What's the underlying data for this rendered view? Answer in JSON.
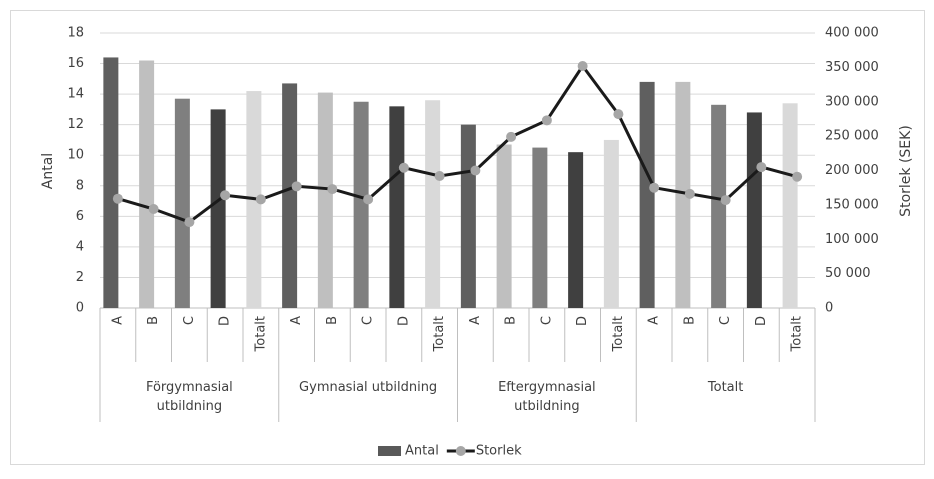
{
  "chart_data": {
    "type": "combo",
    "categories": [
      "A",
      "B",
      "C",
      "D",
      "Totalt",
      "A",
      "B",
      "C",
      "D",
      "Totalt",
      "A",
      "B",
      "C",
      "D",
      "Totalt",
      "A",
      "B",
      "C",
      "D",
      "Totalt"
    ],
    "groups": [
      "Förgymnasial utbildning",
      "Gymnasial utbildning",
      "Eftergymnasial utbildning",
      "Totalt"
    ],
    "series": [
      {
        "name": "Antal",
        "type": "bar",
        "color": "#595959",
        "colors": [
          "#5f5f5f",
          "#bfbfbf",
          "#7f7f7f",
          "#404040",
          "#d9d9d9",
          "#5f5f5f",
          "#bfbfbf",
          "#7f7f7f",
          "#404040",
          "#d9d9d9",
          "#5f5f5f",
          "#bfbfbf",
          "#7f7f7f",
          "#404040",
          "#d9d9d9",
          "#5f5f5f",
          "#bfbfbf",
          "#7f7f7f",
          "#404040",
          "#d9d9d9"
        ],
        "values": [
          16.4,
          16.2,
          13.7,
          13.0,
          14.2,
          14.7,
          14.1,
          13.5,
          13.2,
          13.6,
          12.0,
          10.7,
          10.5,
          10.2,
          11.0,
          14.8,
          14.8,
          13.3,
          12.8,
          13.4
        ]
      },
      {
        "name": "Storlek",
        "type": "line",
        "axis": "y2",
        "color": "#1a1a1a",
        "marker_color": "#a6a6a6",
        "values": [
          159000,
          144000,
          125000,
          164000,
          158000,
          177000,
          173000,
          158000,
          204000,
          192000,
          200000,
          249000,
          273000,
          352000,
          282000,
          175000,
          166000,
          157000,
          205000,
          191000
        ]
      }
    ],
    "ylabel": "Antal",
    "y2label": "Storlek (SEK)",
    "ylim": [
      0,
      18
    ],
    "yticks": [
      0,
      2,
      4,
      6,
      8,
      10,
      12,
      14,
      16,
      18
    ],
    "y2lim": [
      0,
      400000
    ],
    "y2ticks": [
      0,
      {
        "value": 50000,
        "label": "50 000"
      },
      {
        "value": 100000,
        "label": "100 000"
      },
      {
        "value": 150000,
        "label": "150 000"
      },
      {
        "value": 200000,
        "label": "200 000"
      },
      {
        "value": 250000,
        "label": "250 000"
      },
      {
        "value": 300000,
        "label": "300 000"
      },
      {
        "value": 350000,
        "label": "350 000"
      },
      {
        "value": 400000,
        "label": "400 000"
      }
    ],
    "grid": true,
    "legend": "bottom"
  }
}
